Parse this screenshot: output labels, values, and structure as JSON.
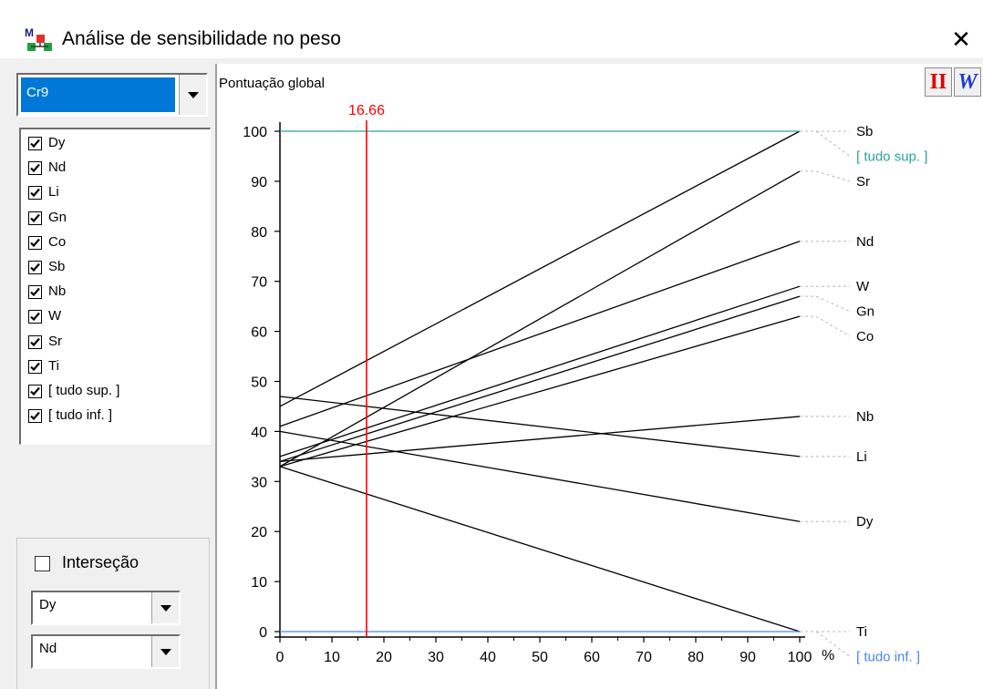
{
  "window": {
    "title": "Análise de sensibilidade no peso",
    "close_glyph": "✕"
  },
  "left_panel": {
    "criterion_select": {
      "value": "Cr9"
    },
    "series_checklist": [
      {
        "label": "Dy",
        "checked": true
      },
      {
        "label": "Nd",
        "checked": true
      },
      {
        "label": "Li",
        "checked": true
      },
      {
        "label": "Gn",
        "checked": true
      },
      {
        "label": "Co",
        "checked": true
      },
      {
        "label": "Sb",
        "checked": true
      },
      {
        "label": "Nb",
        "checked": true
      },
      {
        "label": "W",
        "checked": true
      },
      {
        "label": "Sr",
        "checked": true
      },
      {
        "label": "Ti",
        "checked": true
      },
      {
        "label": "[ tudo sup. ]",
        "checked": true
      },
      {
        "label": "[ tudo inf. ]",
        "checked": true
      }
    ],
    "intersection": {
      "label": "Interseção",
      "checked": false,
      "first_value": "Dy",
      "second_value": "Nd"
    }
  },
  "toolbar": {
    "btn1_label": "II",
    "btn2_label": "W",
    "btn1_color": "#e00000",
    "btn2_color": "#1e3cc8"
  },
  "colors": {
    "highlight": "#0078d7",
    "marker": "#ff0000",
    "upper_ref": "#2aa198",
    "lower_ref": "#4a86e8",
    "series": "#000000"
  },
  "chart_data": {
    "type": "line",
    "ylabel": "Pontuação global",
    "xunit": "%",
    "xlim": [
      0,
      100
    ],
    "ylim": [
      0,
      100
    ],
    "xticks": [
      0,
      10,
      20,
      30,
      40,
      50,
      60,
      70,
      80,
      90,
      100
    ],
    "yticks": [
      0,
      10,
      20,
      30,
      40,
      50,
      60,
      70,
      80,
      90,
      100
    ],
    "current_weight": 16.66,
    "current_weight_label": "16.66",
    "series": [
      {
        "name": "Sb",
        "x": [
          0,
          100
        ],
        "y": [
          45,
          100
        ]
      },
      {
        "name": "[ tudo sup. ]",
        "x": [
          0,
          100
        ],
        "y": [
          100,
          100
        ],
        "color": "#2aa198"
      },
      {
        "name": "Sr",
        "x": [
          0,
          100
        ],
        "y": [
          33,
          92
        ]
      },
      {
        "name": "Nd",
        "x": [
          0,
          100
        ],
        "y": [
          41,
          78
        ]
      },
      {
        "name": "W",
        "x": [
          0,
          100
        ],
        "y": [
          35,
          69
        ]
      },
      {
        "name": "Gn",
        "x": [
          0,
          100
        ],
        "y": [
          34,
          67
        ]
      },
      {
        "name": "Co",
        "x": [
          0,
          100
        ],
        "y": [
          33,
          63
        ]
      },
      {
        "name": "Nb",
        "x": [
          0,
          100
        ],
        "y": [
          34,
          43
        ]
      },
      {
        "name": "Li",
        "x": [
          0,
          100
        ],
        "y": [
          47,
          35
        ]
      },
      {
        "name": "Dy",
        "x": [
          0,
          100
        ],
        "y": [
          40,
          22
        ]
      },
      {
        "name": "Ti",
        "x": [
          0,
          100
        ],
        "y": [
          33,
          0
        ]
      },
      {
        "name": "[ tudo inf. ]",
        "x": [
          0,
          100
        ],
        "y": [
          0,
          0
        ],
        "color": "#4a86e8"
      }
    ],
    "end_labels": [
      {
        "name": "Sb",
        "y": 100
      },
      {
        "name": "[ tudo sup. ]",
        "y": 95,
        "color": "#2aa198"
      },
      {
        "name": "Sr",
        "y": 90
      },
      {
        "name": "Nd",
        "y": 78
      },
      {
        "name": "W",
        "y": 69
      },
      {
        "name": "Gn",
        "y": 64
      },
      {
        "name": "Co",
        "y": 59
      },
      {
        "name": "Nb",
        "y": 43
      },
      {
        "name": "Li",
        "y": 35
      },
      {
        "name": "Dy",
        "y": 22
      },
      {
        "name": "Ti",
        "y": 0
      },
      {
        "name": "[ tudo inf. ]",
        "y": -5,
        "color": "#4a86e8"
      }
    ]
  }
}
